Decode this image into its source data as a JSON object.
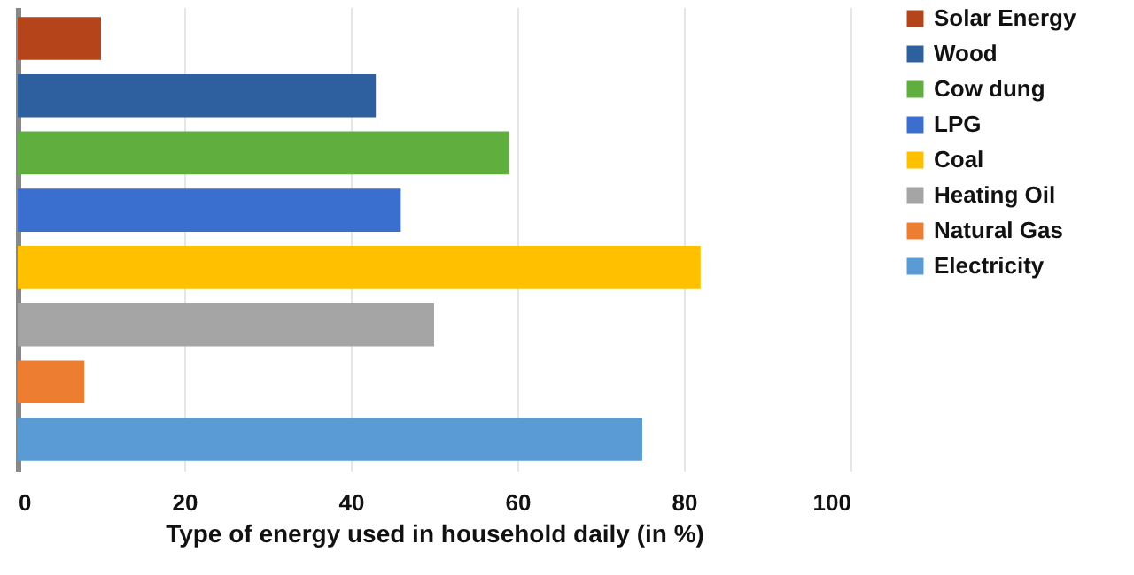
{
  "chart_data": {
    "type": "bar",
    "orientation": "horizontal",
    "xlabel": "Type of energy used in household daily (in %)",
    "categories": [
      null
    ],
    "series": [
      {
        "name": "Solar Energy",
        "color": "#b5441a",
        "values": [
          10
        ]
      },
      {
        "name": "Wood",
        "color": "#2e5f9e",
        "values": [
          43
        ]
      },
      {
        "name": "Cow dung",
        "color": "#5fae3e",
        "values": [
          59
        ]
      },
      {
        "name": "LPG",
        "color": "#3a6fd0",
        "values": [
          46
        ]
      },
      {
        "name": "Coal",
        "color": "#ffc000",
        "values": [
          82
        ]
      },
      {
        "name": "Heating Oil",
        "color": "#a5a5a5",
        "values": [
          50
        ]
      },
      {
        "name": "Natural Gas",
        "color": "#ed7d31",
        "values": [
          8
        ]
      },
      {
        "name": "Electricity",
        "color": "#5b9bd5",
        "values": [
          75
        ]
      }
    ],
    "xlim": [
      0,
      100
    ],
    "xticks": [
      0,
      20,
      40,
      60,
      80,
      100
    ],
    "grid": "x",
    "legend": "right",
    "tick_labels": "x"
  }
}
